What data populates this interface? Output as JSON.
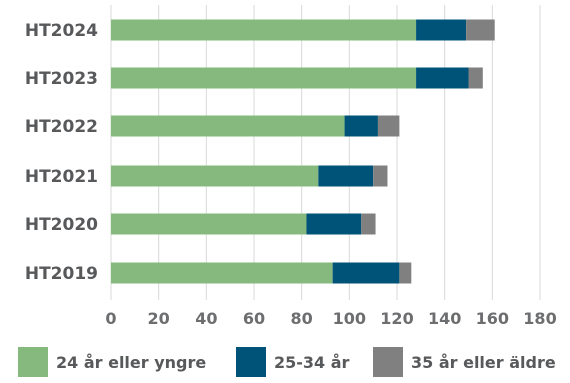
{
  "chart_data": {
    "type": "bar",
    "orientation": "horizontal",
    "stacked": true,
    "categories": [
      "HT2024",
      "HT2023",
      "HT2022",
      "HT2021",
      "HT2020",
      "HT2019"
    ],
    "series": [
      {
        "name": "24 år eller yngre",
        "color": "#86b97e",
        "values": [
          128,
          128,
          98,
          87,
          82,
          93
        ]
      },
      {
        "name": "25-34 år",
        "color": "#005378",
        "values": [
          21,
          22,
          14,
          23,
          23,
          28
        ]
      },
      {
        "name": "35 år eller äldre",
        "color": "#808080",
        "values": [
          12,
          6,
          9,
          6,
          6,
          5
        ]
      }
    ],
    "xticks": [
      "0",
      "20",
      "40",
      "60",
      "80",
      "100",
      "120",
      "140",
      "160",
      "180"
    ],
    "xlim": [
      0,
      180
    ],
    "grid": true,
    "legend_position": "bottom"
  }
}
